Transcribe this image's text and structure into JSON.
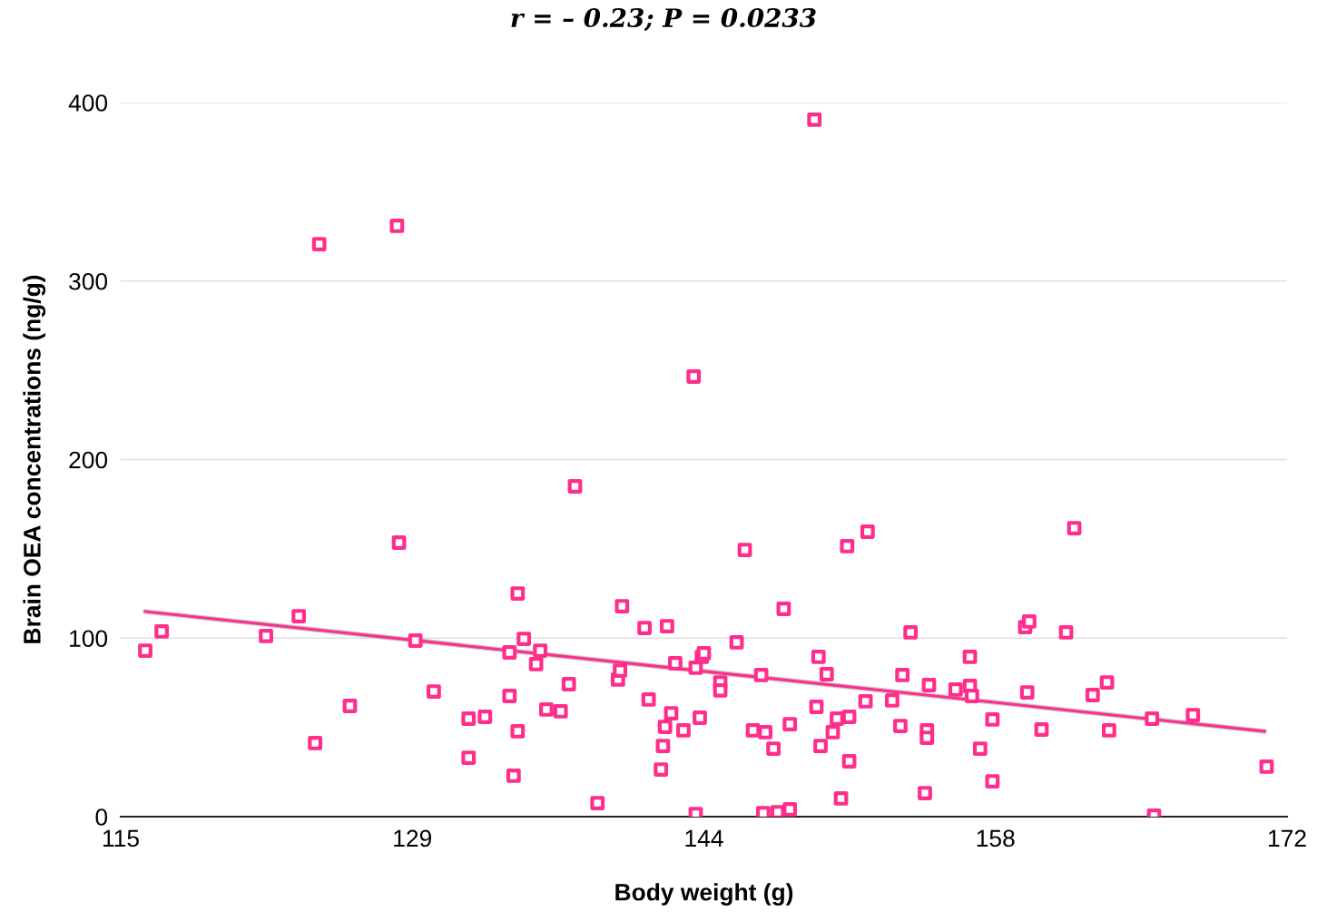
{
  "chart_data": {
    "type": "scatter",
    "title": "r = – 0.23; P = 0.0233",
    "xlabel": "Body weight (g)",
    "ylabel": "Brain OEA concentrations (ng/g)",
    "xlim": [
      115,
      172
    ],
    "xticks": [
      115,
      {
        "value": 129.25,
        "label": "129"
      },
      {
        "value": 143.5,
        "label": "144"
      },
      {
        "value": 157.75,
        "label": "158"
      },
      172
    ],
    "ylim": [
      0,
      400
    ],
    "yticks": [
      0,
      100,
      200,
      300,
      400
    ],
    "grid": "y",
    "legend": false,
    "series": [
      {
        "marker": "square",
        "color": "#ff2d8c",
        "x": [
          116.2,
          117.0,
          122.1,
          123.7,
          124.7,
          124.5,
          126.2,
          128.5,
          128.6,
          129.4,
          130.3,
          132.0,
          132.0,
          132.8,
          134.0,
          134.0,
          134.2,
          134.4,
          134.4,
          134.7,
          135.3,
          135.5,
          135.8,
          136.5,
          136.9,
          137.2,
          138.3,
          139.3,
          139.4,
          139.5,
          140.6,
          140.8,
          141.5,
          141.4,
          141.6,
          141.7,
          141.9,
          142.1,
          142.5,
          143.0,
          143.1,
          143.1,
          143.3,
          143.4,
          143.5,
          144.3,
          144.3,
          145.1,
          145.5,
          145.9,
          146.3,
          146.4,
          146.5,
          146.9,
          147.1,
          147.4,
          147.7,
          147.7,
          148.9,
          149.0,
          149.1,
          149.2,
          149.5,
          149.8,
          150.0,
          150.2,
          150.5,
          150.6,
          150.6,
          151.4,
          151.5,
          152.7,
          153.2,
          153.1,
          153.6,
          154.3,
          154.4,
          154.4,
          154.5,
          155.8,
          156.5,
          156.5,
          156.6,
          157.0,
          157.6,
          157.6,
          159.2,
          159.4,
          159.3,
          160.0,
          161.2,
          161.6,
          162.5,
          163.2,
          163.3,
          165.4,
          165.5,
          167.4,
          171.0
        ],
        "values": [
          93.0,
          103.7,
          101.2,
          112.3,
          320.7,
          41.2,
          62.0,
          330.9,
          153.5,
          98.6,
          70.1,
          54.9,
          33.0,
          55.9,
          92.0,
          67.6,
          22.9,
          125.0,
          47.8,
          99.6,
          85.4,
          93.0,
          60.0,
          59.0,
          74.2,
          185.0,
          7.6,
          76.8,
          81.8,
          117.9,
          105.7,
          65.6,
          39.6,
          26.4,
          50.3,
          106.7,
          57.9,
          85.9,
          48.3,
          246.5,
          1.5,
          83.4,
          55.4,
          89.5,
          91.5,
          75.2,
          70.7,
          97.6,
          149.4,
          48.3,
          79.3,
          2.0,
          47.3,
          38.1,
          2.5,
          116.4,
          51.8,
          4.1,
          390.4,
          61.5,
          89.5,
          39.6,
          79.8,
          47.3,
          54.9,
          10.2,
          151.5,
          55.9,
          31.0,
          64.6,
          159.6,
          65.1,
          79.3,
          50.8,
          103.2,
          13.2,
          48.3,
          44.2,
          73.7,
          71.2,
          89.5,
          73.2,
          67.6,
          38.1,
          19.8,
          54.4,
          106.2,
          109.3,
          69.6,
          48.8,
          103.2,
          161.6,
          68.1,
          75.2,
          48.3,
          54.9,
          0.5,
          56.9,
          28.0
        ]
      },
      {
        "type": "line",
        "marker": "none",
        "line_style": "solid",
        "color": "#ff2d8c",
        "x": [
          116.2,
          170.9
        ],
        "values": [
          114.9,
          47.8
        ]
      }
    ]
  }
}
